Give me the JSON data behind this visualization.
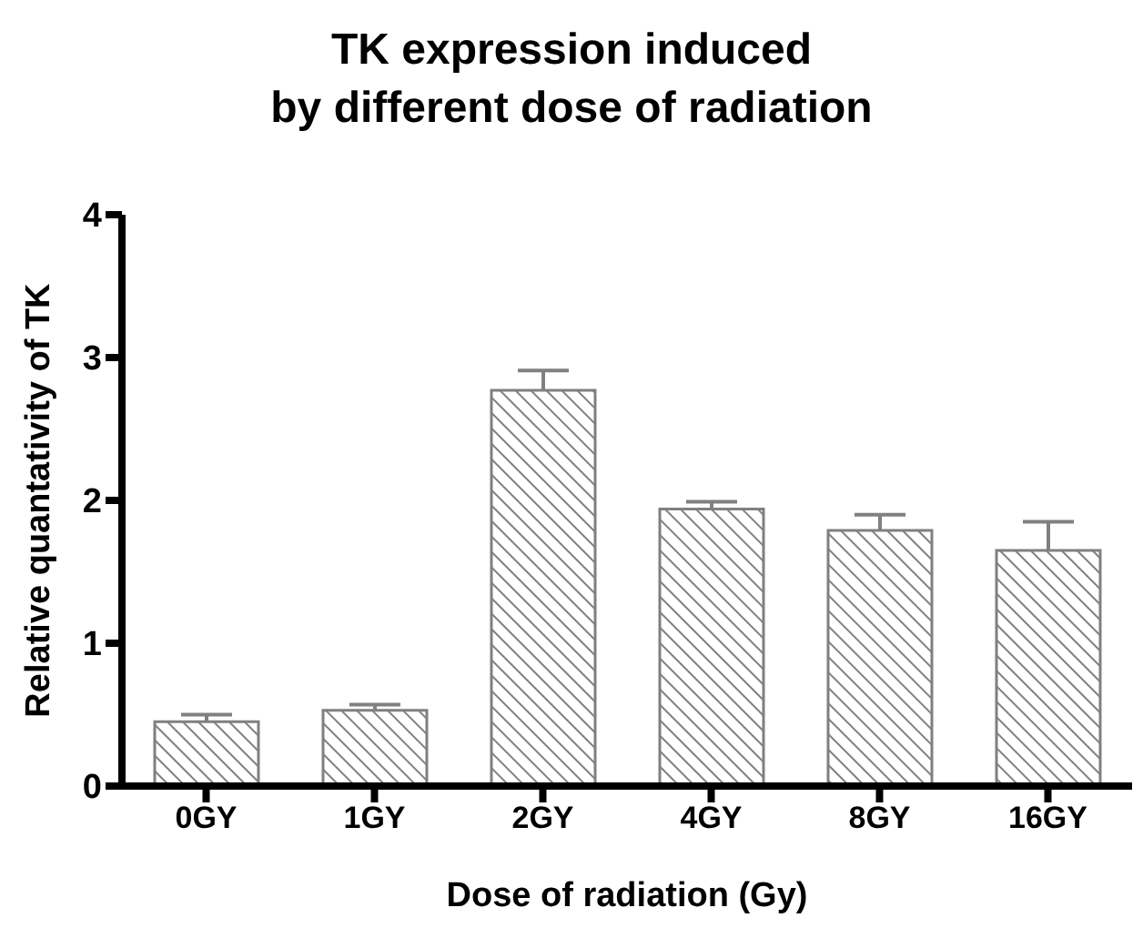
{
  "chart_data": {
    "type": "bar",
    "title": "TK expression induced\nby different dose of radiation",
    "xlabel": "Dose of radiation (Gy)",
    "ylabel": "Relative quantativity of TK",
    "categories": [
      "0GY",
      "1GY",
      "2GY",
      "4GY",
      "8GY",
      "16GY"
    ],
    "values": [
      0.45,
      0.53,
      2.77,
      1.94,
      1.79,
      1.65
    ],
    "errors": [
      [
        0.45,
        0.5
      ],
      [
        0.53,
        0.57
      ],
      [
        2.77,
        2.91
      ],
      [
        1.94,
        1.99
      ],
      [
        1.79,
        1.9
      ],
      [
        1.65,
        1.85
      ]
    ],
    "color": "#808080",
    "ylim": [
      0,
      4
    ],
    "yticks": [
      0,
      1,
      2,
      3,
      4
    ],
    "grid": false,
    "legend": false
  }
}
